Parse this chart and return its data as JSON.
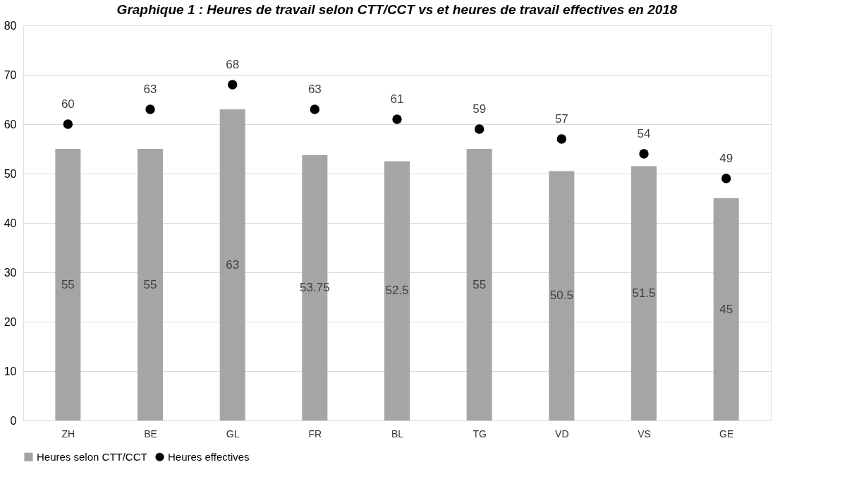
{
  "chart_data": {
    "type": "bar",
    "title": "Graphique 1 : Heures de travail selon CTT/CCT vs et heures de travail effectives en 2018",
    "categories": [
      "ZH",
      "BE",
      "GL",
      "FR",
      "BL",
      "TG",
      "VD",
      "VS",
      "GE"
    ],
    "series": [
      {
        "name": "Heures selon CTT/CCT",
        "color": "#a5a5a5",
        "values": [
          55,
          55,
          63,
          53.75,
          52.5,
          55,
          50.5,
          51.5,
          45
        ]
      },
      {
        "name": "Heures effectives",
        "type": "scatter",
        "marker": "circle",
        "color": "#000000",
        "values": [
          60,
          63,
          68,
          63,
          61,
          59,
          57,
          54,
          49
        ]
      }
    ],
    "ylim": [
      0,
      80
    ],
    "yticks": [
      0,
      10,
      20,
      30,
      40,
      50,
      60,
      70,
      80
    ],
    "grid": "y",
    "legend": "bottom",
    "data_labels": true
  }
}
